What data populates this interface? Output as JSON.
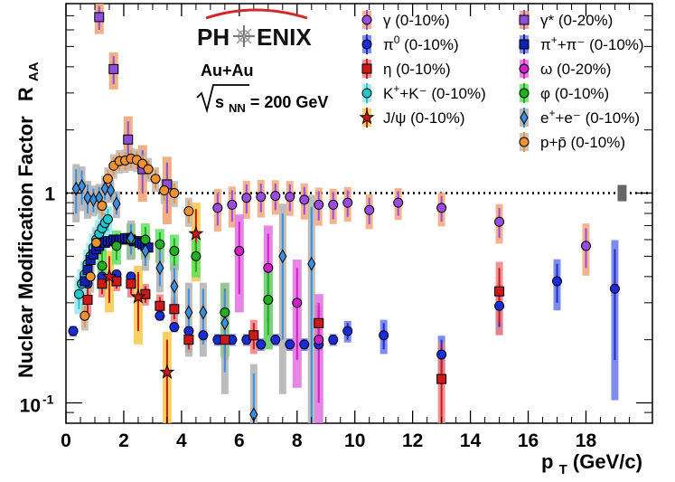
{
  "chart_data": {
    "type": "scatter",
    "title": "",
    "xlabel": "p",
    "xlabel_sub": "T",
    "xlabel_unit": "(GeV/c)",
    "ylabel": "Nuclear Modification Factor  R",
    "ylabel_short": "Nuclear Modification Factor",
    "ylabel_R": "R",
    "ylabel_sub": "AA",
    "xlim": [
      0,
      20.3
    ],
    "ylim": [
      0.08,
      8.0
    ],
    "yscale": "log",
    "x_ticks": [
      "0",
      "2",
      "4",
      "6",
      "8",
      "10",
      "12",
      "14",
      "16",
      "18"
    ],
    "y_ticks": [
      "1",
      "10"
    ],
    "y_tick_exponent": "-1",
    "reference_line": 1.0,
    "logo": {
      "left": "PH",
      "right": "ENIX"
    },
    "annotations": {
      "system": "Au+Au",
      "energy_pre": "s",
      "energy_sub": "NN",
      "energy_post": " = 200 GeV"
    },
    "series": [
      {
        "name": "γ (0-10%)",
        "label_main": "γ (0-10%)",
        "label_sup": "",
        "label_post": "",
        "color": "#9a4ce0",
        "marker": "circle",
        "band": "#f3a47a",
        "x": [
          5.25,
          5.75,
          6.25,
          6.75,
          7.25,
          7.75,
          8.25,
          8.75,
          9.25,
          9.75,
          10.5,
          11.5,
          13.0,
          15.0,
          18.0
        ],
        "y": [
          0.85,
          0.88,
          0.95,
          0.96,
          0.97,
          0.96,
          0.93,
          0.88,
          0.88,
          0.9,
          0.83,
          0.9,
          0.85,
          0.73,
          0.56
        ],
        "dy": [
          0.15,
          0.15,
          0.15,
          0.15,
          0.14,
          0.14,
          0.14,
          0.14,
          0.13,
          0.13,
          0.12,
          0.12,
          0.12,
          0.12,
          0.12
        ]
      },
      {
        "name": "π0 (0-10%)",
        "label_main": "π",
        "label_sup": "0",
        "label_post": " (0-10%)",
        "color": "#1a2cd8",
        "marker": "circle",
        "band": "#6a78e6",
        "x": [
          0.25,
          0.75,
          1.25,
          1.75,
          2.25,
          2.75,
          3.25,
          3.75,
          4.25,
          4.75,
          5.25,
          5.75,
          6.25,
          6.75,
          7.25,
          7.75,
          8.25,
          8.75,
          9.25,
          9.75,
          11.0,
          13.0,
          15.0,
          17.0,
          19.0
        ],
        "y": [
          0.22,
          0.37,
          0.4,
          0.41,
          0.4,
          0.33,
          0.26,
          0.23,
          0.22,
          0.21,
          0.2,
          0.2,
          0.2,
          0.19,
          0.2,
          0.19,
          0.19,
          0.19,
          0.2,
          0.22,
          0.21,
          0.17,
          0.29,
          0.38,
          0.35
        ],
        "dy": [
          0.01,
          0.01,
          0.01,
          0.01,
          0.01,
          0.01,
          0.01,
          0.01,
          0.01,
          0.01,
          0.01,
          0.01,
          0.01,
          0.01,
          0.01,
          0.01,
          0.01,
          0.01,
          0.01,
          0.02,
          0.03,
          0.03,
          0.06,
          0.08,
          0.19
        ]
      },
      {
        "name": "η (0-10%)",
        "label_main": "η (0-10%)",
        "label_sup": "",
        "label_post": "",
        "color": "#cc1a1a",
        "marker": "square",
        "band": "#f08080",
        "x": [
          0.75,
          1.25,
          1.75,
          2.25,
          2.75,
          3.25,
          3.75,
          4.25,
          5.5,
          6.5,
          8.75,
          13.0,
          15.0
        ],
        "y": [
          0.31,
          0.37,
          0.38,
          0.37,
          0.33,
          0.29,
          0.28,
          0.2,
          0.2,
          0.21,
          0.24,
          0.13,
          0.34
        ],
        "dy": [
          0.04,
          0.04,
          0.03,
          0.04,
          0.03,
          0.03,
          0.03,
          0.02,
          0.03,
          0.03,
          0.04,
          0.05,
          0.1
        ]
      },
      {
        "name": "K+ + K- (0-10%)",
        "label_main": "K",
        "label_sup": "+",
        "label_post": "+K⁻ (0-10%)",
        "color": "#20c8d0",
        "marker": "circle",
        "band": "#9ae6ea",
        "x": [
          0.45,
          0.55,
          0.65,
          0.75,
          0.85,
          0.95,
          1.05,
          1.15,
          1.25,
          1.35,
          1.45
        ],
        "y": [
          0.33,
          0.37,
          0.41,
          0.46,
          0.5,
          0.55,
          0.6,
          0.64,
          0.68,
          0.72,
          0.75
        ],
        "dy": [
          0.05,
          0.05,
          0.05,
          0.06,
          0.06,
          0.07,
          0.07,
          0.08,
          0.08,
          0.08,
          0.09
        ]
      },
      {
        "name": "J/ψ (0-10%)",
        "label_main": "J/ψ (0-10%)",
        "label_sup": "",
        "label_post": "",
        "color": "#c81818",
        "marker": "star",
        "band": "#f6c84a",
        "x": [
          1.5,
          2.5,
          3.5,
          4.5
        ],
        "y": [
          0.4,
          0.32,
          0.14,
          0.64
        ],
        "dy": [
          0.1,
          0.1,
          0.06,
          0.2
        ]
      },
      {
        "name": "γ* (0-20%)",
        "label_main": "γ* (0-20%)",
        "label_sup": "",
        "label_post": "",
        "color": "#8a50d8",
        "marker": "square",
        "band": "#f0a070",
        "x": [
          1.15,
          1.65,
          2.15,
          2.65,
          3.5
        ],
        "y": [
          6.9,
          3.9,
          1.8,
          1.3,
          1.1
        ],
        "dy": [
          0.9,
          0.6,
          0.4,
          0.3,
          0.3
        ]
      },
      {
        "name": "π+ + π- (0-10%)",
        "label_main": "π",
        "label_sup": "+",
        "label_post": "+π⁻ (0-10%)",
        "color": "#1020b0",
        "marker": "square",
        "band": "#7080e0",
        "x": [
          0.65,
          0.75,
          0.85,
          0.95,
          1.05,
          1.15,
          1.25,
          1.35,
          1.45,
          1.55,
          1.65,
          1.75,
          1.85,
          1.95,
          2.05,
          2.15,
          2.25,
          2.35,
          2.45,
          2.55,
          2.65,
          2.75,
          2.85
        ],
        "y": [
          0.38,
          0.43,
          0.48,
          0.51,
          0.54,
          0.56,
          0.58,
          0.58,
          0.59,
          0.59,
          0.6,
          0.6,
          0.6,
          0.6,
          0.61,
          0.61,
          0.6,
          0.59,
          0.59,
          0.58,
          0.57,
          0.56,
          0.55
        ],
        "dy": [
          0.02,
          0.02,
          0.02,
          0.02,
          0.02,
          0.02,
          0.02,
          0.02,
          0.02,
          0.02,
          0.02,
          0.02,
          0.02,
          0.02,
          0.02,
          0.02,
          0.02,
          0.02,
          0.02,
          0.02,
          0.02,
          0.02,
          0.02
        ]
      },
      {
        "name": "ω (0-20%)",
        "label_main": "ω (0-20%)",
        "label_sup": "",
        "label_post": "",
        "color": "#d020c8",
        "marker": "circle",
        "band": "#e070e0",
        "x": [
          6.0,
          7.0,
          8.0,
          8.75
        ],
        "y": [
          0.53,
          0.44,
          0.3,
          0.2
        ],
        "dy": [
          0.2,
          0.2,
          0.14,
          0.1
        ]
      },
      {
        "name": "φ (0-10%)",
        "label_main": "φ (0-10%)",
        "label_sup": "",
        "label_post": "",
        "color": "#20b020",
        "marker": "circle",
        "band": "#60e060",
        "x": [
          1.25,
          1.75,
          2.25,
          2.75,
          3.25,
          3.75,
          4.5,
          5.5,
          7.0
        ],
        "y": [
          0.45,
          0.56,
          0.6,
          0.6,
          0.57,
          0.53,
          0.5,
          0.27,
          0.31
        ],
        "dy": [
          0.08,
          0.08,
          0.09,
          0.09,
          0.08,
          0.08,
          0.08,
          0.08,
          0.1
        ]
      },
      {
        "name": "e+ + e- (0-10%)",
        "label_main": "e",
        "label_sup": "+",
        "label_post": "+e⁻ (0-10%)",
        "color": "#3a90e0",
        "marker": "diamond",
        "band": "#b0b0b0",
        "x": [
          0.35,
          0.55,
          0.75,
          0.95,
          1.15,
          1.35,
          1.55,
          1.75,
          2.25,
          2.75,
          3.25,
          3.75,
          4.25,
          4.75,
          5.5,
          6.5,
          7.5,
          8.5
        ],
        "y": [
          1.05,
          1.08,
          0.95,
          0.93,
          0.95,
          1.05,
          1.03,
          0.89,
          0.61,
          0.53,
          0.44,
          0.36,
          0.27,
          0.27,
          0.24,
          0.088,
          0.5,
          0.46
        ],
        "dy": [
          0.25,
          0.2,
          0.15,
          0.12,
          0.12,
          0.12,
          0.1,
          0.1,
          0.1,
          0.08,
          0.08,
          0.08,
          0.08,
          0.08,
          0.1,
          0.05,
          0.3,
          0.4
        ]
      },
      {
        "name": "p + pbar (0-10%)",
        "label_main": "p+p̄ (0-10%)",
        "label_sup": "",
        "label_post": "",
        "color": "#f09030",
        "marker": "circle",
        "band": "#c0b8b0",
        "x": [
          0.65,
          0.85,
          1.05,
          1.25,
          1.45,
          1.65,
          1.85,
          2.05,
          2.25,
          2.45,
          2.65,
          2.85,
          3.1,
          3.4,
          3.75,
          4.25
        ],
        "y": [
          0.26,
          0.4,
          0.58,
          0.87,
          1.17,
          1.35,
          1.42,
          1.43,
          1.46,
          1.44,
          1.38,
          1.3,
          1.17,
          1.03,
          1.0,
          0.82
        ],
        "dy": [
          0.03,
          0.05,
          0.07,
          0.09,
          0.12,
          0.14,
          0.14,
          0.14,
          0.14,
          0.14,
          0.14,
          0.13,
          0.12,
          0.11,
          0.11,
          0.1
        ]
      }
    ]
  }
}
